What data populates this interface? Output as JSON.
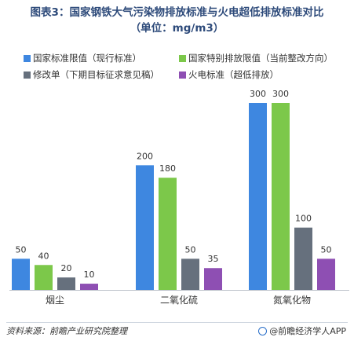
{
  "header": {
    "title_line1": "图表3：国家钢铁大气污染物排放标准与火电超低排放标准对比",
    "title_line2": "（单位：mg/m3）"
  },
  "legend": [
    {
      "label": "国家标准限值（现行标准）",
      "color": "#3e87e0"
    },
    {
      "label": "国家特别排放限值（当前整改方向）",
      "color": "#7cc84a"
    },
    {
      "label": "修改单（下期目标征求意见稿）",
      "color": "#66707d"
    },
    {
      "label": "火电标准（超低排放）",
      "color": "#8e4fb3"
    }
  ],
  "chart_data": {
    "type": "bar",
    "title": "图表3：国家钢铁大气污染物排放标准与火电超低排放标准对比（单位：mg/m3）",
    "categories": [
      "烟尘",
      "二氧化硫",
      "氮氧化物"
    ],
    "series": [
      {
        "name": "国家标准限值（现行标准）",
        "values": [
          50,
          200,
          300
        ],
        "color": "#3e87e0"
      },
      {
        "name": "国家特别排放限值（当前整改方向）",
        "values": [
          40,
          180,
          300
        ],
        "color": "#7cc84a"
      },
      {
        "name": "修改单（下期目标征求意见稿）",
        "values": [
          20,
          50,
          100
        ],
        "color": "#66707d"
      },
      {
        "name": "火电标准（超低排放）",
        "values": [
          10,
          35,
          50
        ],
        "color": "#8e4fb3"
      }
    ],
    "ylim": [
      0,
      300
    ],
    "grid": false,
    "legend_position": "top"
  },
  "footer": {
    "source": "资料来源：前瞻产业研究院整理",
    "brand": "@前瞻经济学人APP"
  }
}
